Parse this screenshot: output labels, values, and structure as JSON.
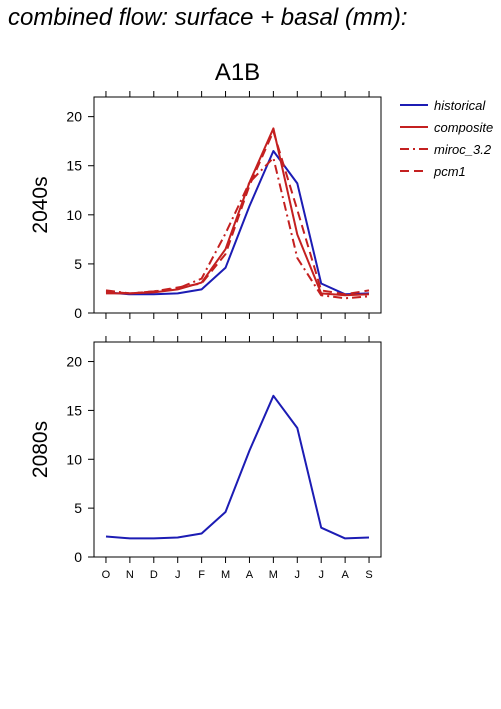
{
  "page_title": "combined flow: surface + basal (mm):",
  "chart_data": {
    "type": "line",
    "title": "A1B",
    "categories": [
      "O",
      "N",
      "D",
      "J",
      "F",
      "M",
      "A",
      "M",
      "J",
      "J",
      "A",
      "S"
    ],
    "ylim": [
      0,
      22
    ],
    "yticks": [
      0,
      5,
      10,
      15,
      20
    ],
    "legend_position": "right",
    "legend": [
      "historical",
      "composite",
      "miroc_3.2",
      "pcm1"
    ],
    "colors": {
      "historical": "#1c1cb4",
      "scenario": "#c42020"
    },
    "panels": [
      {
        "ylabel": "2040s",
        "series": [
          {
            "name": "historical",
            "style": "solid",
            "color": "#1c1cb4",
            "values": [
              2.1,
              1.9,
              1.9,
              2.0,
              2.4,
              4.6,
              10.9,
              16.5,
              13.2,
              3.0,
              1.9,
              2.0
            ]
          },
          {
            "name": "composite",
            "style": "solid",
            "color": "#c42020",
            "values": [
              2.0,
              2.0,
              2.1,
              2.4,
              3.1,
              6.5,
              13.3,
              18.8,
              8.0,
              2.0,
              1.8,
              1.9
            ]
          },
          {
            "name": "miroc_3.2",
            "style": "dashdot",
            "color": "#c42020",
            "values": [
              2.3,
              2.0,
              2.2,
              2.5,
              3.5,
              8.1,
              13.3,
              15.8,
              5.6,
              1.8,
              1.5,
              1.7
            ]
          },
          {
            "name": "pcm1",
            "style": "dash",
            "color": "#c42020",
            "values": [
              2.2,
              2.0,
              2.2,
              2.6,
              3.0,
              6.0,
              13.0,
              18.5,
              10.5,
              2.3,
              1.9,
              2.3
            ]
          }
        ]
      },
      {
        "ylabel": "2080s",
        "series": [
          {
            "name": "historical",
            "style": "solid",
            "color": "#1c1cb4",
            "values": [
              2.1,
              1.9,
              1.9,
              2.0,
              2.4,
              4.6,
              10.9,
              16.5,
              13.2,
              3.0,
              1.9,
              2.0
            ]
          }
        ]
      }
    ]
  }
}
